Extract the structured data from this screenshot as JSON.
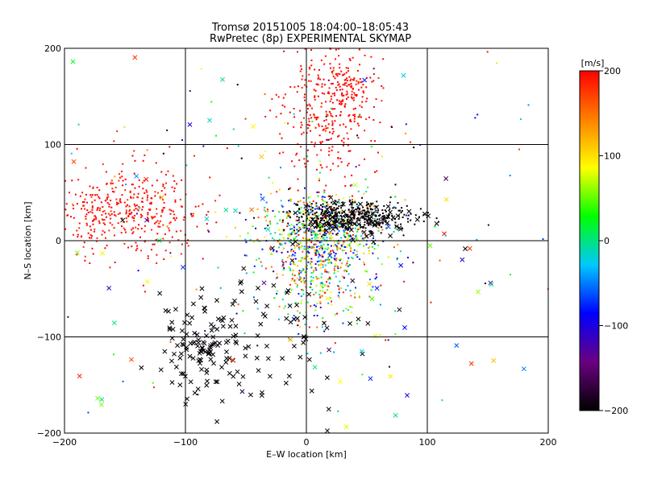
{
  "chart_data": {
    "type": "scatter",
    "title": "Tromsø 20151005  18:04:00–18:05:43",
    "subtitle": "RwPretec (8p) EXPERIMENTAL SKYMAP",
    "xlabel": "E–W location [km]",
    "ylabel": "N–S location [km]",
    "xlim": [
      -200,
      200
    ],
    "ylim": [
      -200,
      200
    ],
    "xticks": [
      -200,
      -100,
      0,
      100,
      200
    ],
    "yticks": [
      -200,
      -100,
      0,
      100,
      200
    ],
    "grid": true,
    "colorbar": {
      "label": "[m/s]",
      "range": [
        -200,
        200
      ],
      "ticks": [
        -200,
        -100,
        0,
        100,
        200
      ],
      "colors": [
        "#000000",
        "#6a0080",
        "#0000ff",
        "#00c8ff",
        "#00ff00",
        "#ffff00",
        "#ff8000",
        "#ff0000"
      ]
    },
    "point_clusters": [
      {
        "name": "west red band",
        "cx": -150,
        "cy": 30,
        "sx": 32,
        "sy": 22,
        "n": 420,
        "v": 200,
        "spread": 25,
        "marker": "dot"
      },
      {
        "name": "north red plume",
        "cx": 15,
        "cy": 130,
        "sx": 20,
        "sy": 40,
        "n": 300,
        "v": 200,
        "spread": 20,
        "marker": "dot"
      },
      {
        "name": "northeast red",
        "cx": 35,
        "cy": 160,
        "sx": 12,
        "sy": 18,
        "n": 110,
        "v": 200,
        "spread": 15,
        "marker": "dot"
      },
      {
        "name": "central mixed",
        "cx": 10,
        "cy": 5,
        "sx": 25,
        "sy": 22,
        "n": 650,
        "v": 40,
        "spread": 160,
        "marker": "dot"
      },
      {
        "name": "central black band",
        "cx": 35,
        "cy": 25,
        "sx": 25,
        "sy": 8,
        "n": 380,
        "v": -200,
        "spread": 10,
        "marker": "dot"
      },
      {
        "name": "south central",
        "cx": 10,
        "cy": -40,
        "sx": 20,
        "sy": 25,
        "n": 220,
        "v": 60,
        "spread": 160,
        "marker": "dot"
      },
      {
        "name": "southwest black crosses",
        "cx": -85,
        "cy": -110,
        "sx": 18,
        "sy": 25,
        "n": 120,
        "v": -200,
        "spread": 10,
        "marker": "x"
      },
      {
        "name": "south black crosses",
        "cx": -20,
        "cy": -95,
        "sx": 30,
        "sy": 40,
        "n": 60,
        "v": -200,
        "spread": 10,
        "marker": "x"
      },
      {
        "name": "central black crosses",
        "cx": 40,
        "cy": 20,
        "sx": 30,
        "sy": 10,
        "n": 80,
        "v": -200,
        "spread": 10,
        "marker": "x"
      },
      {
        "name": "scattered crosses",
        "cx": 0,
        "cy": 0,
        "sx": 120,
        "sy": 110,
        "n": 90,
        "v": 0,
        "spread": 200,
        "marker": "x"
      },
      {
        "name": "scattered dots",
        "cx": 0,
        "cy": 0,
        "sx": 120,
        "sy": 110,
        "n": 200,
        "v": 0,
        "spread": 200,
        "marker": "dot"
      }
    ]
  }
}
